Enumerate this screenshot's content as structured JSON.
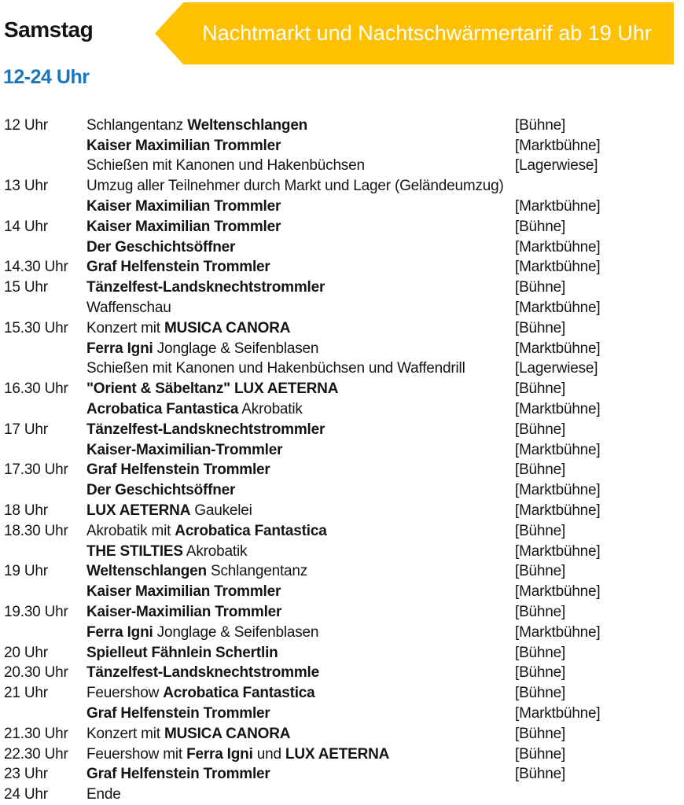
{
  "header": {
    "day": "Samstag",
    "banner_text": "Nachtmarkt und Nachtschwärmertarif ab 19 Uhr",
    "banner_color": "#FFC000",
    "banner_text_color": "#FFFFFF",
    "time_range": "12-24 Uhr",
    "time_range_color": "#1B75BC"
  },
  "schedule": {
    "rows": [
      {
        "time": "12 Uhr",
        "segments": [
          {
            "text": "Schlangentanz ",
            "bold": false
          },
          {
            "text": "Weltenschlangen",
            "bold": true
          }
        ],
        "location": "[Bühne]"
      },
      {
        "time": "",
        "segments": [
          {
            "text": "Kaiser Maximilian Trommler",
            "bold": true
          }
        ],
        "location": "[Marktbühne]"
      },
      {
        "time": "",
        "segments": [
          {
            "text": "Schießen mit Kanonen und Hakenbüchsen",
            "bold": false
          }
        ],
        "location": "[Lagerwiese]"
      },
      {
        "time": "13 Uhr",
        "segments": [
          {
            "text": "Umzug aller Teilnehmer durch Markt und Lager (Geländeumzug)",
            "bold": false
          }
        ],
        "location": ""
      },
      {
        "time": "",
        "segments": [
          {
            "text": "Kaiser Maximilian Trommler",
            "bold": true
          }
        ],
        "location": "[Marktbühne]"
      },
      {
        "time": "14 Uhr",
        "segments": [
          {
            "text": "Kaiser Maximilian Trommler",
            "bold": true
          }
        ],
        "location": "[Bühne]"
      },
      {
        "time": "",
        "segments": [
          {
            "text": "Der Geschichtsöffner",
            "bold": true
          }
        ],
        "location": "[Marktbühne]"
      },
      {
        "time": "14.30 Uhr",
        "segments": [
          {
            "text": "Graf Helfenstein Trommler",
            "bold": true
          }
        ],
        "location": "[Marktbühne]"
      },
      {
        "time": "15 Uhr",
        "segments": [
          {
            "text": "Tänzelfest-Landsknechtstrommler",
            "bold": true
          }
        ],
        "location": "[Bühne]"
      },
      {
        "time": "",
        "segments": [
          {
            "text": "Waffenschau",
            "bold": false
          }
        ],
        "location": "[Marktbühne]"
      },
      {
        "time": "15.30 Uhr",
        "segments": [
          {
            "text": "Konzert mit ",
            "bold": false
          },
          {
            "text": "MUSICA CANORA",
            "bold": true
          }
        ],
        "location": "[Bühne]"
      },
      {
        "time": "",
        "segments": [
          {
            "text": "Ferra Igni",
            "bold": true
          },
          {
            "text": " Jonglage & Seifenblasen",
            "bold": false
          }
        ],
        "location": "[Marktbühne]"
      },
      {
        "time": "",
        "segments": [
          {
            "text": "Schießen mit Kanonen und Hakenbüchsen und Waffendrill",
            "bold": false
          }
        ],
        "location": "[Lagerwiese]"
      },
      {
        "time": "16.30 Uhr",
        "segments": [
          {
            "text": "\"Orient & Säbeltanz\" LUX AETERNA",
            "bold": true
          }
        ],
        "location": "[Bühne]"
      },
      {
        "time": "",
        "segments": [
          {
            "text": "Acrobatica Fantastica",
            "bold": true
          },
          {
            "text": " Akrobatik",
            "bold": false
          }
        ],
        "location": "[Marktbühne]"
      },
      {
        "time": "17 Uhr",
        "segments": [
          {
            "text": "Tänzelfest-Landsknechtstrommler",
            "bold": true
          }
        ],
        "location": "[Bühne]"
      },
      {
        "time": "",
        "segments": [
          {
            "text": "Kaiser-Maximilian-Trommler",
            "bold": true
          }
        ],
        "location": "[Marktbühne]"
      },
      {
        "time": "17.30 Uhr",
        "segments": [
          {
            "text": "Graf Helfenstein Trommler",
            "bold": true
          }
        ],
        "location": "[Bühne]"
      },
      {
        "time": "",
        "segments": [
          {
            "text": "Der Geschichtsöffner",
            "bold": true
          }
        ],
        "location": "[Marktbühne]"
      },
      {
        "time": "18 Uhr",
        "segments": [
          {
            "text": "LUX AETERNA",
            "bold": true
          },
          {
            "text": " Gaukelei",
            "bold": false
          }
        ],
        "location": "[Marktbühne]"
      },
      {
        "time": "18.30 Uhr",
        "segments": [
          {
            "text": "Akrobatik mit ",
            "bold": false
          },
          {
            "text": "Acrobatica Fantastica",
            "bold": true
          }
        ],
        "location": "[Bühne]"
      },
      {
        "time": "",
        "segments": [
          {
            "text": "THE STILTIES",
            "bold": true
          },
          {
            "text": " Akrobatik",
            "bold": false
          }
        ],
        "location": "[Marktbühne]"
      },
      {
        "time": "19 Uhr",
        "segments": [
          {
            "text": "Weltenschlangen",
            "bold": true
          },
          {
            "text": " Schlangentanz",
            "bold": false
          }
        ],
        "location": "[Bühne]"
      },
      {
        "time": "",
        "segments": [
          {
            "text": "Kaiser Maximilian Trommler",
            "bold": true
          }
        ],
        "location": "[Marktbühne]"
      },
      {
        "time": "19.30 Uhr",
        "segments": [
          {
            "text": "Kaiser-Maximilian Trommler",
            "bold": true
          }
        ],
        "location": "[Bühne]"
      },
      {
        "time": "",
        "segments": [
          {
            "text": "Ferra Igni",
            "bold": true
          },
          {
            "text": " Jonglage & Seifenblasen",
            "bold": false
          }
        ],
        "location": "[Marktbühne]"
      },
      {
        "time": "20 Uhr",
        "segments": [
          {
            "text": "Spielleut Fähnlein Schertlin",
            "bold": true
          }
        ],
        "location": "[Bühne]"
      },
      {
        "time": "20.30 Uhr",
        "segments": [
          {
            "text": "Tänzelfest-Landsknechtstrommle",
            "bold": true
          }
        ],
        "location": "[Bühne]"
      },
      {
        "time": "21 Uhr",
        "segments": [
          {
            "text": "Feuershow ",
            "bold": false
          },
          {
            "text": "Acrobatica Fantastica",
            "bold": true
          }
        ],
        "location": "[Bühne]"
      },
      {
        "time": "",
        "segments": [
          {
            "text": "Graf Helfenstein Trommler",
            "bold": true
          }
        ],
        "location": "[Marktbühne]"
      },
      {
        "time": "21.30 Uhr",
        "segments": [
          {
            "text": "Konzert mit ",
            "bold": false
          },
          {
            "text": "MUSICA CANORA",
            "bold": true
          }
        ],
        "location": "[Bühne]"
      },
      {
        "time": "22.30 Uhr",
        "segments": [
          {
            "text": "Feuershow mit ",
            "bold": false
          },
          {
            "text": "Ferra Igni",
            "bold": true
          },
          {
            "text": " und ",
            "bold": false
          },
          {
            "text": "LUX AETERNA",
            "bold": true
          }
        ],
        "location": "[Bühne]"
      },
      {
        "time": "23 Uhr",
        "segments": [
          {
            "text": "Graf Helfenstein Trommler",
            "bold": true
          }
        ],
        "location": "[Bühne]"
      },
      {
        "time": "24 Uhr",
        "segments": [
          {
            "text": "Ende",
            "bold": false
          }
        ],
        "location": ""
      }
    ]
  }
}
